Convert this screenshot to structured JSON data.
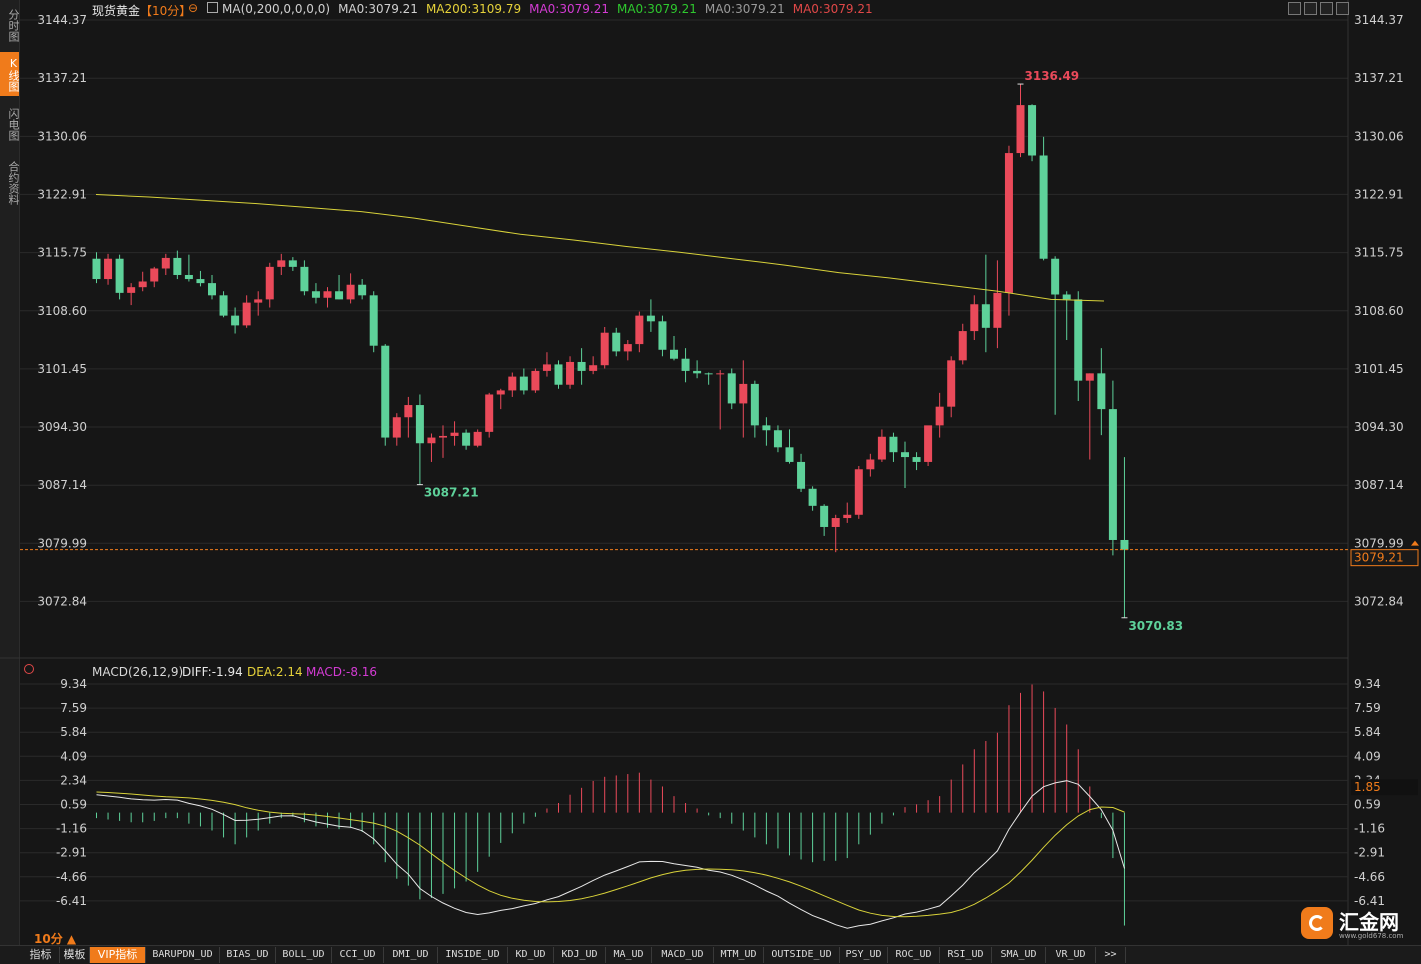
{
  "sidebar": {
    "tabs": [
      {
        "label": "分时图",
        "active": false
      },
      {
        "label": "K线图",
        "active": true
      },
      {
        "label": "闪电图",
        "active": false
      },
      {
        "label": "合约资料",
        "active": false
      }
    ]
  },
  "header": {
    "symbol": "现货黄金",
    "period": "【10分】",
    "indicators": [
      {
        "text": "MA(0,200,0,0,0,0)",
        "color": "#d0d0d0"
      },
      {
        "text": "MA0:3079.21",
        "color": "#d0d0d0"
      },
      {
        "text": "MA200:3109.79",
        "color": "#e6d23a"
      },
      {
        "text": "MA0:3079.21",
        "color": "#d43bd4"
      },
      {
        "text": "MA0:3079.21",
        "color": "#2ec82e"
      },
      {
        "text": "MA0:3079.21",
        "color": "#9a9a9a"
      },
      {
        "text": "MA0:3079.21",
        "color": "#e04848"
      }
    ]
  },
  "price_axis": {
    "ticks": [
      "3144.37",
      "3137.21",
      "3130.06",
      "3122.91",
      "3115.75",
      "3108.60",
      "3101.45",
      "3094.30",
      "3087.14",
      "3079.99",
      "3072.84"
    ],
    "current": "3079.21"
  },
  "annotations": {
    "high": "3136.49",
    "low1": "3087.21",
    "low2": "3070.83"
  },
  "macd_header": {
    "label": "MACD(26,12,9)",
    "diff": "DIFF:-1.94",
    "dea": "DEA:2.14",
    "macd": "MACD:-8.16"
  },
  "macd_axis": {
    "ticks": [
      "9.34",
      "7.59",
      "5.84",
      "4.09",
      "2.34",
      "0.59",
      "-1.16",
      "-2.91",
      "-4.66",
      "-6.41"
    ],
    "current": "1.85"
  },
  "period_label": "10分",
  "bottom_tabs": [
    "指标",
    "模板",
    "VIP指标",
    "BARUPDN_UD",
    "BIAS_UD",
    "BOLL_UD",
    "CCI_UD",
    "DMI_UD",
    "INSIDE_UD",
    "KD_UD",
    "KDJ_UD",
    "MA_UD",
    "MACD_UD",
    "MTM_UD",
    "OUTSIDE_UD",
    "PSY_UD",
    "ROC_UD",
    "RSI_UD",
    "SMA_UD",
    "VR_UD",
    ">>"
  ],
  "logo": {
    "text": "汇金网",
    "sub": "www.gold678.com"
  },
  "colors": {
    "up": "#ea4a5a",
    "down": "#5ed19a",
    "ma200": "#d8d23a",
    "grid": "#2a2a2a"
  },
  "chart_data": {
    "type": "candlestick",
    "ma200": [
      3122.9,
      3122.6,
      3122.2,
      3121.8,
      3121.3,
      3120.8,
      3120.0,
      3119.0,
      3118.0,
      3117.3,
      3116.5,
      3115.8,
      3115.0,
      3114.2,
      3113.3,
      3112.6,
      3111.8,
      3111.0,
      3110.0,
      3109.8
    ],
    "candles": [
      {
        "o": 3115.0,
        "h": 3115.8,
        "l": 3112.0,
        "c": 3112.5
      },
      {
        "o": 3112.5,
        "h": 3115.6,
        "l": 3111.8,
        "c": 3115.0
      },
      {
        "o": 3115.0,
        "h": 3115.5,
        "l": 3110.0,
        "c": 3110.8
      },
      {
        "o": 3110.8,
        "h": 3112.0,
        "l": 3109.3,
        "c": 3111.5
      },
      {
        "o": 3111.5,
        "h": 3113.4,
        "l": 3111.0,
        "c": 3112.2
      },
      {
        "o": 3112.2,
        "h": 3114.0,
        "l": 3111.5,
        "c": 3113.8
      },
      {
        "o": 3113.8,
        "h": 3115.6,
        "l": 3113.0,
        "c": 3115.1
      },
      {
        "o": 3115.1,
        "h": 3116.0,
        "l": 3112.5,
        "c": 3113.0
      },
      {
        "o": 3113.0,
        "h": 3115.5,
        "l": 3112.2,
        "c": 3112.5
      },
      {
        "o": 3112.5,
        "h": 3113.5,
        "l": 3111.6,
        "c": 3112.0
      },
      {
        "o": 3112.0,
        "h": 3113.0,
        "l": 3110.0,
        "c": 3110.5
      },
      {
        "o": 3110.5,
        "h": 3111.0,
        "l": 3107.8,
        "c": 3108.0
      },
      {
        "o": 3108.0,
        "h": 3109.0,
        "l": 3105.8,
        "c": 3106.8
      },
      {
        "o": 3106.8,
        "h": 3110.5,
        "l": 3106.5,
        "c": 3109.6
      },
      {
        "o": 3109.6,
        "h": 3111.0,
        "l": 3108.0,
        "c": 3110.0
      },
      {
        "o": 3110.0,
        "h": 3114.5,
        "l": 3109.0,
        "c": 3114.0
      },
      {
        "o": 3114.0,
        "h": 3115.6,
        "l": 3113.0,
        "c": 3114.8
      },
      {
        "o": 3114.8,
        "h": 3115.2,
        "l": 3113.5,
        "c": 3114.0
      },
      {
        "o": 3114.0,
        "h": 3114.8,
        "l": 3110.5,
        "c": 3111.0
      },
      {
        "o": 3111.0,
        "h": 3112.0,
        "l": 3109.5,
        "c": 3110.2
      },
      {
        "o": 3110.2,
        "h": 3111.5,
        "l": 3109.0,
        "c": 3111.0
      },
      {
        "o": 3111.0,
        "h": 3113.0,
        "l": 3110.0,
        "c": 3110.0
      },
      {
        "o": 3110.0,
        "h": 3113.2,
        "l": 3109.5,
        "c": 3111.8
      },
      {
        "o": 3111.8,
        "h": 3112.5,
        "l": 3110.0,
        "c": 3110.5
      },
      {
        "o": 3110.5,
        "h": 3111.0,
        "l": 3103.5,
        "c": 3104.3
      },
      {
        "o": 3104.3,
        "h": 3104.5,
        "l": 3092.0,
        "c": 3093.0
      },
      {
        "o": 3093.0,
        "h": 3096.0,
        "l": 3092.0,
        "c": 3095.5
      },
      {
        "o": 3095.5,
        "h": 3098.0,
        "l": 3093.0,
        "c": 3097.0
      },
      {
        "o": 3097.0,
        "h": 3098.3,
        "l": 3087.2,
        "c": 3092.3
      },
      {
        "o": 3092.3,
        "h": 3093.5,
        "l": 3090.0,
        "c": 3093.0
      },
      {
        "o": 3093.0,
        "h": 3094.5,
        "l": 3090.5,
        "c": 3093.2
      },
      {
        "o": 3093.2,
        "h": 3095.0,
        "l": 3092.0,
        "c": 3093.6
      },
      {
        "o": 3093.6,
        "h": 3094.0,
        "l": 3091.5,
        "c": 3092.0
      },
      {
        "o": 3092.0,
        "h": 3094.0,
        "l": 3091.8,
        "c": 3093.7
      },
      {
        "o": 3093.7,
        "h": 3098.5,
        "l": 3093.0,
        "c": 3098.3
      },
      {
        "o": 3098.3,
        "h": 3099.0,
        "l": 3096.5,
        "c": 3098.8
      },
      {
        "o": 3098.8,
        "h": 3101.0,
        "l": 3098.0,
        "c": 3100.5
      },
      {
        "o": 3100.5,
        "h": 3101.5,
        "l": 3098.3,
        "c": 3098.8
      },
      {
        "o": 3098.8,
        "h": 3101.5,
        "l": 3098.5,
        "c": 3101.2
      },
      {
        "o": 3101.2,
        "h": 3103.5,
        "l": 3100.5,
        "c": 3102.0
      },
      {
        "o": 3102.0,
        "h": 3102.5,
        "l": 3099.0,
        "c": 3099.5
      },
      {
        "o": 3099.5,
        "h": 3103.0,
        "l": 3099.0,
        "c": 3102.3
      },
      {
        "o": 3102.3,
        "h": 3104.0,
        "l": 3099.5,
        "c": 3101.2
      },
      {
        "o": 3101.2,
        "h": 3103.0,
        "l": 3100.8,
        "c": 3101.9
      },
      {
        "o": 3101.9,
        "h": 3106.6,
        "l": 3101.5,
        "c": 3105.9
      },
      {
        "o": 3105.9,
        "h": 3106.5,
        "l": 3103.0,
        "c": 3103.6
      },
      {
        "o": 3103.6,
        "h": 3105.0,
        "l": 3102.5,
        "c": 3104.5
      },
      {
        "o": 3104.5,
        "h": 3108.5,
        "l": 3103.5,
        "c": 3108.0
      },
      {
        "o": 3108.0,
        "h": 3110.0,
        "l": 3106.0,
        "c": 3107.3
      },
      {
        "o": 3107.3,
        "h": 3108.0,
        "l": 3103.0,
        "c": 3103.8
      },
      {
        "o": 3103.8,
        "h": 3105.5,
        "l": 3102.5,
        "c": 3102.7
      },
      {
        "o": 3102.7,
        "h": 3104.0,
        "l": 3099.8,
        "c": 3101.2
      },
      {
        "o": 3101.2,
        "h": 3102.5,
        "l": 3100.3,
        "c": 3100.9
      },
      {
        "o": 3100.9,
        "h": 3101.0,
        "l": 3099.5,
        "c": 3100.8
      },
      {
        "o": 3100.8,
        "h": 3101.3,
        "l": 3094.0,
        "c": 3100.9
      },
      {
        "o": 3100.9,
        "h": 3101.5,
        "l": 3096.5,
        "c": 3097.2
      },
      {
        "o": 3097.2,
        "h": 3102.5,
        "l": 3093.0,
        "c": 3099.6
      },
      {
        "o": 3099.6,
        "h": 3100.0,
        "l": 3093.0,
        "c": 3094.5
      },
      {
        "o": 3094.5,
        "h": 3095.5,
        "l": 3092.0,
        "c": 3093.9
      },
      {
        "o": 3093.9,
        "h": 3094.5,
        "l": 3091.2,
        "c": 3091.8
      },
      {
        "o": 3091.8,
        "h": 3094.0,
        "l": 3089.8,
        "c": 3090.0
      },
      {
        "o": 3090.0,
        "h": 3091.0,
        "l": 3086.3,
        "c": 3086.7
      },
      {
        "o": 3086.7,
        "h": 3087.0,
        "l": 3084.0,
        "c": 3084.6
      },
      {
        "o": 3084.6,
        "h": 3084.8,
        "l": 3080.9,
        "c": 3082.0
      },
      {
        "o": 3082.0,
        "h": 3083.5,
        "l": 3078.9,
        "c": 3083.1
      },
      {
        "o": 3083.1,
        "h": 3085.0,
        "l": 3082.5,
        "c": 3083.5
      },
      {
        "o": 3083.5,
        "h": 3089.5,
        "l": 3083.0,
        "c": 3089.1
      },
      {
        "o": 3089.1,
        "h": 3091.0,
        "l": 3088.2,
        "c": 3090.3
      },
      {
        "o": 3090.3,
        "h": 3094.0,
        "l": 3090.0,
        "c": 3093.1
      },
      {
        "o": 3093.1,
        "h": 3093.6,
        "l": 3090.0,
        "c": 3091.2
      },
      {
        "o": 3091.2,
        "h": 3092.5,
        "l": 3086.8,
        "c": 3090.6
      },
      {
        "o": 3090.6,
        "h": 3091.2,
        "l": 3089.0,
        "c": 3090.0
      },
      {
        "o": 3090.0,
        "h": 3094.0,
        "l": 3089.5,
        "c": 3094.5
      },
      {
        "o": 3094.5,
        "h": 3098.5,
        "l": 3093.0,
        "c": 3096.8
      },
      {
        "o": 3096.8,
        "h": 3103.0,
        "l": 3095.5,
        "c": 3102.5
      },
      {
        "o": 3102.5,
        "h": 3107.0,
        "l": 3102.0,
        "c": 3106.1
      },
      {
        "o": 3106.1,
        "h": 3110.5,
        "l": 3105.0,
        "c": 3109.4
      },
      {
        "o": 3109.4,
        "h": 3115.5,
        "l": 3103.5,
        "c": 3106.5
      },
      {
        "o": 3106.5,
        "h": 3114.8,
        "l": 3104.0,
        "c": 3110.8
      },
      {
        "o": 3110.8,
        "h": 3128.9,
        "l": 3108.0,
        "c": 3128.0
      },
      {
        "o": 3128.0,
        "h": 3136.5,
        "l": 3127.5,
        "c": 3133.9
      },
      {
        "o": 3133.9,
        "h": 3134.0,
        "l": 3127.0,
        "c": 3127.7
      },
      {
        "o": 3127.7,
        "h": 3130.0,
        "l": 3114.8,
        "c": 3115.0
      },
      {
        "o": 3115.0,
        "h": 3115.3,
        "l": 3095.8,
        "c": 3110.6
      },
      {
        "o": 3110.6,
        "h": 3111.0,
        "l": 3105.0,
        "c": 3110.0
      },
      {
        "o": 3110.0,
        "h": 3111.0,
        "l": 3097.5,
        "c": 3100.0
      },
      {
        "o": 3100.0,
        "h": 3100.9,
        "l": 3090.3,
        "c": 3100.9
      },
      {
        "o": 3100.9,
        "h": 3104.0,
        "l": 3093.3,
        "c": 3096.5
      },
      {
        "o": 3096.5,
        "h": 3100.0,
        "l": 3078.5,
        "c": 3080.4
      },
      {
        "o": 3080.4,
        "h": 3090.6,
        "l": 3070.8,
        "c": 3079.2
      }
    ],
    "macd_hist": [
      -0.4,
      -0.5,
      -0.6,
      -0.7,
      -0.7,
      -0.6,
      -0.4,
      -0.4,
      -0.8,
      -1.0,
      -1.3,
      -1.8,
      -2.3,
      -1.8,
      -1.3,
      -0.8,
      -0.4,
      -0.3,
      -0.7,
      -1.0,
      -1.1,
      -1.2,
      -1.1,
      -1.4,
      -2.3,
      -3.6,
      -4.8,
      -5.3,
      -6.3,
      -6.2,
      -5.9,
      -5.5,
      -5.0,
      -4.3,
      -3.2,
      -2.2,
      -1.5,
      -0.8,
      -0.3,
      0.3,
      0.7,
      1.3,
      1.8,
      2.3,
      2.6,
      2.7,
      2.8,
      2.9,
      2.4,
      1.9,
      1.2,
      0.7,
      0.3,
      -0.2,
      -0.4,
      -0.8,
      -1.3,
      -1.8,
      -2.3,
      -2.6,
      -3.1,
      -3.4,
      -3.6,
      -3.5,
      -3.5,
      -3.3,
      -2.3,
      -1.6,
      -0.8,
      -0.2,
      0.4,
      0.6,
      0.9,
      1.2,
      2.4,
      3.5,
      4.6,
      5.2,
      5.8,
      7.8,
      8.7,
      9.3,
      8.8,
      7.6,
      6.4,
      4.6,
      1.9,
      -0.4,
      -3.3,
      -8.2
    ]
  }
}
